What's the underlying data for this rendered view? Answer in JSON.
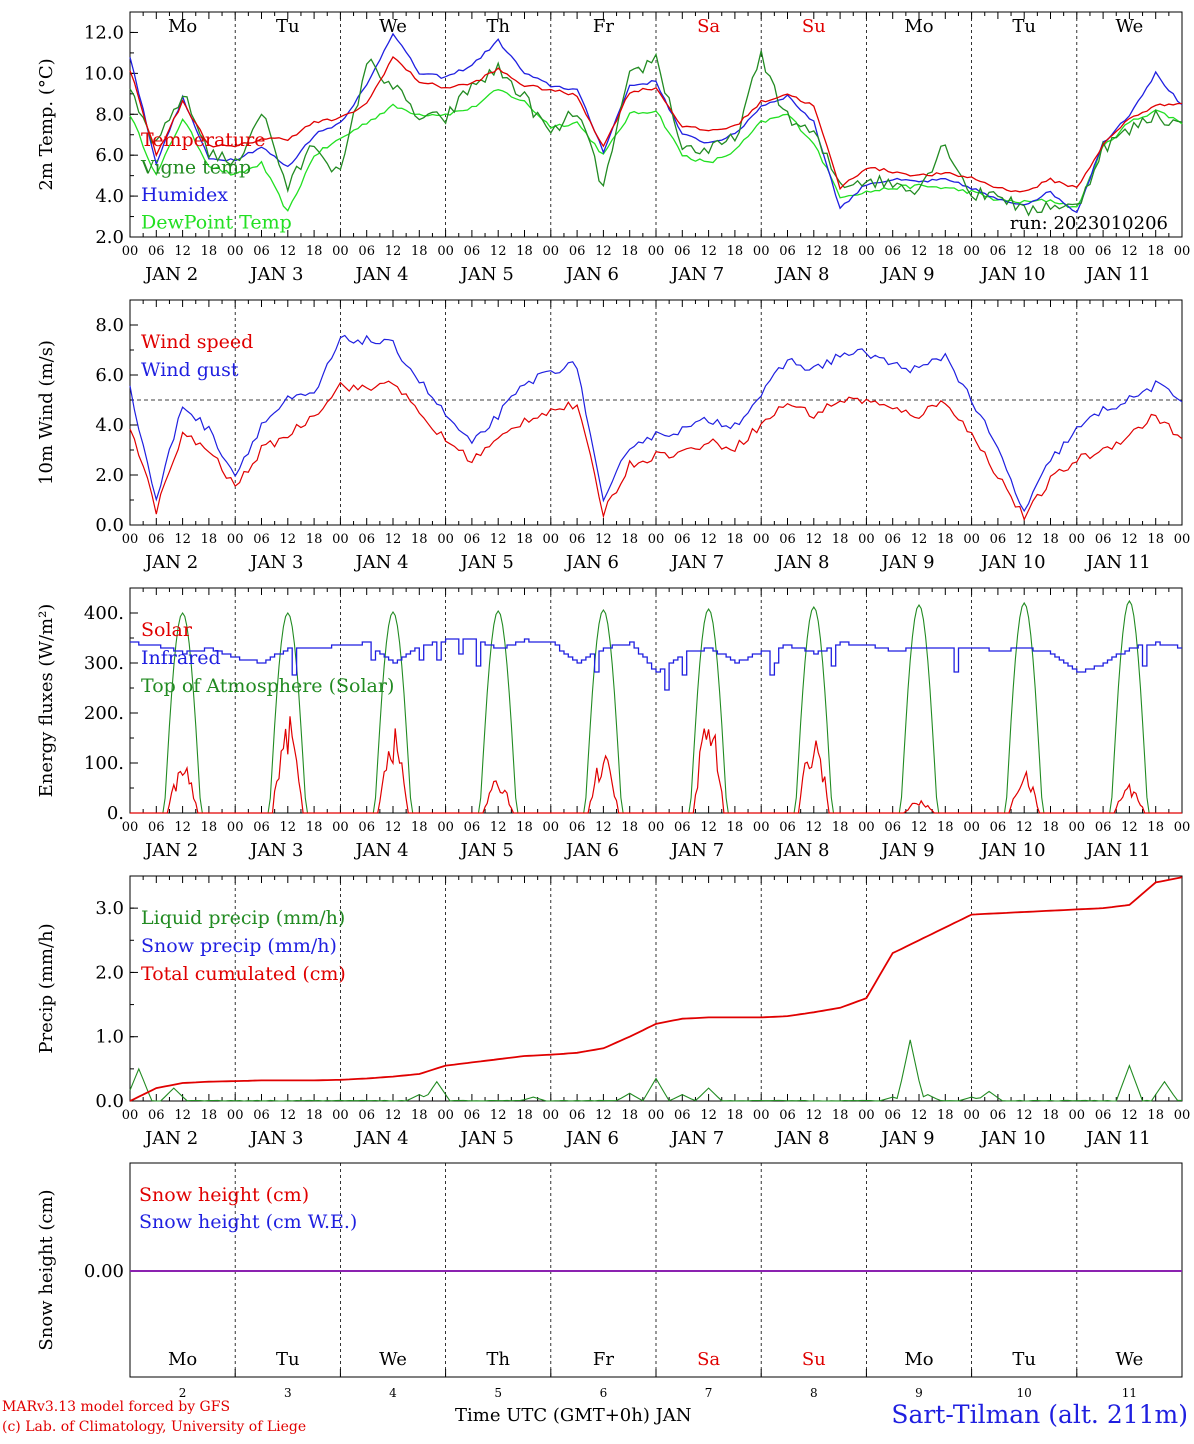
{
  "chart_data": [
    {
      "type": "line",
      "ylabel": "2m Temp. (°C)",
      "ylim": [
        2,
        13
      ],
      "yticks": [
        "2.0",
        "4.0",
        "6.0",
        "8.0",
        "10.0",
        "12.0"
      ],
      "annotation": "run: 2023010206",
      "weekday_labels": [
        {
          "label": "Mo",
          "color": "#000000"
        },
        {
          "label": "Tu",
          "color": "#000000"
        },
        {
          "label": "We",
          "color": "#000000"
        },
        {
          "label": "Th",
          "color": "#000000"
        },
        {
          "label": "Fr",
          "color": "#000000"
        },
        {
          "label": "Sa",
          "color": "#e00000"
        },
        {
          "label": "Su",
          "color": "#e00000"
        },
        {
          "label": "Mo",
          "color": "#000000"
        },
        {
          "label": "Tu",
          "color": "#000000"
        },
        {
          "label": "We",
          "color": "#000000"
        }
      ],
      "x_hours": [
        0,
        6,
        12,
        18,
        24,
        30,
        36,
        42,
        48,
        54,
        60,
        66,
        72,
        78,
        84,
        90,
        96,
        102,
        108,
        114,
        120,
        126,
        132,
        138,
        144,
        150,
        156,
        162,
        168,
        174,
        180,
        186,
        192,
        198,
        204,
        210,
        216,
        222,
        228,
        234,
        240
      ],
      "series": [
        {
          "name": "Temperature",
          "color": "#e00000",
          "values": [
            10.2,
            6.0,
            8.6,
            6.5,
            6.4,
            6.8,
            6.8,
            7.6,
            7.8,
            8.5,
            10.8,
            9.6,
            9.3,
            9.5,
            10.2,
            9.4,
            9.2,
            8.9,
            6.4,
            9.1,
            9.3,
            7.4,
            7.2,
            7.4,
            8.6,
            9.0,
            8.4,
            4.4,
            5.4,
            5.2,
            5.0,
            5.1,
            4.9,
            4.4,
            4.2,
            4.8,
            4.4,
            6.5,
            7.8,
            8.4,
            8.6
          ]
        },
        {
          "name": "Vigne temp",
          "color": "#228b22",
          "values": [
            9.0,
            6.4,
            9.0,
            6.2,
            5.5,
            8.2,
            4.4,
            6.6,
            5.0,
            10.6,
            9.4,
            7.8,
            7.8,
            9.4,
            10.2,
            8.8,
            7.0,
            8.2,
            4.4,
            9.8,
            10.8,
            6.4,
            6.2,
            6.8,
            10.8,
            7.8,
            7.0,
            4.6,
            4.8,
            4.6,
            4.4,
            6.6,
            4.0,
            4.2,
            3.2,
            3.6,
            3.4,
            6.4,
            7.2,
            8.0,
            7.4
          ]
        },
        {
          "name": "Humidex",
          "color": "#1f1fe0",
          "values": [
            10.8,
            5.6,
            8.8,
            5.8,
            5.8,
            6.4,
            5.4,
            7.0,
            7.6,
            9.4,
            12.0,
            10.0,
            9.8,
            10.4,
            11.6,
            10.0,
            9.4,
            9.2,
            6.2,
            9.4,
            9.6,
            7.0,
            6.6,
            7.0,
            8.4,
            8.9,
            7.6,
            3.4,
            4.6,
            4.8,
            4.7,
            4.8,
            4.4,
            3.8,
            3.6,
            4.2,
            3.2,
            6.6,
            8.0,
            10.0,
            8.4
          ]
        },
        {
          "name": "DewPoint Temp",
          "color": "#22e022",
          "values": [
            8.0,
            5.0,
            7.8,
            5.5,
            5.0,
            5.6,
            3.2,
            6.0,
            6.8,
            7.6,
            8.4,
            8.0,
            8.0,
            8.3,
            9.2,
            8.6,
            7.4,
            7.6,
            6.0,
            8.0,
            8.2,
            6.0,
            5.6,
            6.2,
            7.6,
            8.0,
            6.6,
            4.0,
            4.2,
            4.4,
            4.5,
            4.4,
            4.2,
            3.8,
            3.7,
            3.8,
            3.4,
            6.4,
            7.6,
            8.2,
            7.6
          ]
        }
      ]
    },
    {
      "type": "line",
      "ylabel": "10m Wind (m/s)",
      "ylim": [
        0,
        9
      ],
      "yticks": [
        "0.0",
        "2.0",
        "4.0",
        "6.0",
        "8.0"
      ],
      "reference_line": 5.0,
      "x_hours": [
        0,
        6,
        12,
        18,
        24,
        30,
        36,
        42,
        48,
        54,
        60,
        66,
        72,
        78,
        84,
        90,
        96,
        102,
        108,
        114,
        120,
        126,
        132,
        138,
        144,
        150,
        156,
        162,
        168,
        174,
        180,
        186,
        192,
        198,
        204,
        210,
        216,
        222,
        228,
        234,
        240
      ],
      "series": [
        {
          "name": "Wind speed",
          "color": "#e00000",
          "values": [
            4.0,
            0.6,
            3.6,
            3.0,
            1.5,
            3.0,
            3.6,
            4.4,
            5.6,
            5.4,
            5.8,
            4.4,
            3.4,
            2.6,
            3.4,
            4.2,
            4.6,
            4.8,
            0.5,
            2.4,
            2.8,
            2.9,
            3.3,
            3.1,
            4.0,
            4.9,
            4.4,
            5.0,
            5.0,
            4.6,
            4.4,
            5.0,
            3.6,
            2.0,
            0.3,
            1.8,
            2.6,
            3.0,
            3.6,
            4.4,
            3.4
          ]
        },
        {
          "name": "Wind gust",
          "color": "#1f1fe0",
          "values": [
            5.4,
            1.0,
            4.8,
            3.8,
            2.0,
            4.0,
            5.0,
            5.2,
            7.4,
            7.4,
            7.2,
            5.8,
            4.4,
            3.2,
            4.4,
            5.6,
            6.2,
            6.4,
            0.8,
            3.2,
            3.6,
            3.8,
            4.2,
            4.0,
            5.2,
            6.6,
            6.2,
            6.8,
            6.9,
            6.4,
            6.2,
            6.8,
            5.0,
            3.0,
            0.5,
            2.6,
            3.8,
            4.6,
            5.0,
            5.6,
            5.0
          ]
        }
      ]
    },
    {
      "type": "line",
      "ylabel": "Energy fluxes (W/m²)",
      "ylim": [
        0,
        450
      ],
      "yticks": [
        "0.",
        "100.",
        "200.",
        "300.",
        "400."
      ],
      "series": [
        {
          "name": "Solar",
          "color": "#e00000",
          "day_peaks": [
            100,
            200,
            175,
            70,
            120,
            205,
            170,
            25,
            85,
            60
          ]
        },
        {
          "name": "Infrared",
          "color": "#1f1fe0",
          "values": [
            340,
            335,
            320,
            330,
            310,
            300,
            330,
            330,
            335,
            340,
            300,
            335,
            345,
            345,
            330,
            345,
            340,
            300,
            330,
            340,
            280,
            320,
            330,
            300,
            325,
            335,
            320,
            340,
            335,
            325,
            330,
            328,
            330,
            325,
            330,
            320,
            280,
            300,
            330,
            340,
            330
          ]
        },
        {
          "name": "Top of Atmosphere (Solar)",
          "color": "#228b22",
          "day_peaks": [
            400,
            400,
            402,
            404,
            406,
            408,
            412,
            416,
            420,
            424
          ]
        }
      ]
    },
    {
      "type": "line",
      "ylabel": "Precip (mm/h)",
      "ylim": [
        0,
        3.5
      ],
      "yticks": [
        "0.0",
        "1.0",
        "2.0",
        "3.0"
      ],
      "series": [
        {
          "name": "Liquid precip (mm/h)",
          "color": "#228b22",
          "spikes": [
            [
              2,
              0.5
            ],
            [
              10,
              0.2
            ],
            [
              66,
              0.1
            ],
            [
              70,
              0.3
            ],
            [
              92,
              0.06
            ],
            [
              114,
              0.12
            ],
            [
              120,
              0.35
            ],
            [
              126,
              0.1
            ],
            [
              132,
              0.2
            ],
            [
              174,
              0.06
            ],
            [
              178,
              0.95
            ],
            [
              182,
              0.1
            ],
            [
              192,
              0.06
            ],
            [
              196,
              0.15
            ],
            [
              228,
              0.55
            ],
            [
              236,
              0.3
            ]
          ]
        },
        {
          "name": "Snow precip (mm/h)",
          "color": "#1f1fe0",
          "spikes": []
        },
        {
          "name": "Total cumulated (cm)",
          "color": "#e00000",
          "x_hours": [
            0,
            6,
            12,
            18,
            24,
            30,
            36,
            42,
            48,
            54,
            60,
            66,
            72,
            78,
            84,
            90,
            96,
            102,
            108,
            114,
            120,
            126,
            132,
            138,
            144,
            150,
            156,
            162,
            168,
            174,
            180,
            186,
            192,
            198,
            204,
            210,
            216,
            222,
            228,
            234,
            240
          ],
          "values": [
            0.0,
            0.2,
            0.28,
            0.3,
            0.31,
            0.32,
            0.32,
            0.32,
            0.33,
            0.35,
            0.38,
            0.42,
            0.55,
            0.6,
            0.65,
            0.7,
            0.72,
            0.75,
            0.82,
            1.0,
            1.2,
            1.28,
            1.3,
            1.3,
            1.3,
            1.32,
            1.38,
            1.45,
            1.6,
            2.3,
            2.5,
            2.7,
            2.9,
            2.92,
            2.94,
            2.96,
            2.98,
            3.0,
            3.05,
            3.4,
            3.48
          ]
        }
      ]
    },
    {
      "type": "line",
      "ylabel": "Snow height (cm)",
      "yticks": [
        "0.00"
      ],
      "series": [
        {
          "name": "Snow height (cm)",
          "color": "#e00000",
          "values": [
            0,
            0
          ]
        },
        {
          "name": "Snow height (cm W.E.)",
          "color": "#1f1fe0",
          "values": [
            0,
            0
          ]
        }
      ]
    }
  ],
  "x_axis": {
    "hour_ticks": [
      "00",
      "06",
      "12",
      "18"
    ],
    "final_tick": "00",
    "date_labels": [
      "JAN  2",
      "JAN  3",
      "JAN  4",
      "JAN  5",
      "JAN  6",
      "JAN  7",
      "JAN  8",
      "JAN  9",
      "JAN 10",
      "JAN 11"
    ],
    "day_numbers": [
      "2",
      "3",
      "4",
      "5",
      "6",
      "7",
      "8",
      "9",
      "10",
      "11"
    ]
  },
  "footer": {
    "credit_line1": "MARv3.13 model forced by GFS",
    "credit_line2": "(c) Lab. of Climatology, University of Liege",
    "xlabel": "Time UTC (GMT+0h) JAN",
    "station": "Sart-Tilman (alt. 211m)"
  },
  "colors": {
    "red": "#e00000",
    "green": "#228b22",
    "blue": "#1f1fe0",
    "lightgreen": "#22e022",
    "purple": "#8b22b0"
  }
}
